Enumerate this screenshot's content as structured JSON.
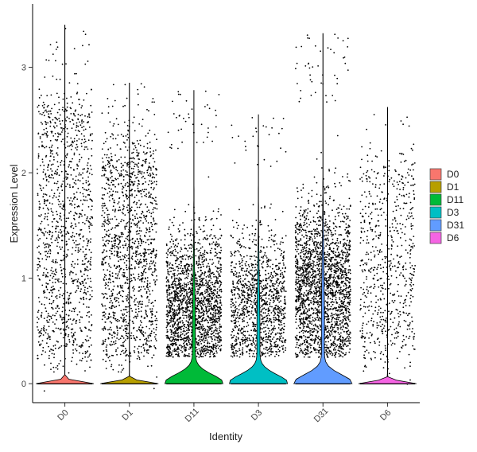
{
  "chart_data": {
    "type": "violin",
    "xlabel": "Identity",
    "ylabel": "Expression Level",
    "ylim": [
      -0.18,
      3.6
    ],
    "yticks": [
      0,
      1,
      2,
      3
    ],
    "grid": false,
    "legend_position": "right",
    "categories": [
      "D0",
      "D1",
      "D11",
      "D3",
      "D31",
      "D6"
    ],
    "series": [
      {
        "name": "D0",
        "color": "#F8766D",
        "max": 3.4,
        "jitter_density": 0.55,
        "zero_fraction_high": true,
        "median_nonzero": 1.6
      },
      {
        "name": "D1",
        "color": "#B79F00",
        "max": 2.85,
        "jitter_density": 0.65,
        "zero_fraction_high": true,
        "median_nonzero": 1.3
      },
      {
        "name": "D11",
        "color": "#00BA38",
        "max": 2.78,
        "jitter_density": 0.85,
        "zero_fraction_high": false,
        "median_nonzero": 0.75
      },
      {
        "name": "D3",
        "color": "#00BFC4",
        "max": 2.55,
        "jitter_density": 0.55,
        "zero_fraction_high": false,
        "median_nonzero": 0.75
      },
      {
        "name": "D31",
        "color": "#619CFF",
        "max": 3.32,
        "jitter_density": 1.0,
        "zero_fraction_high": false,
        "median_nonzero": 0.9
      },
      {
        "name": "D6",
        "color": "#F564E3",
        "max": 2.62,
        "jitter_density": 0.3,
        "zero_fraction_high": true,
        "median_nonzero": 0.8
      }
    ]
  }
}
